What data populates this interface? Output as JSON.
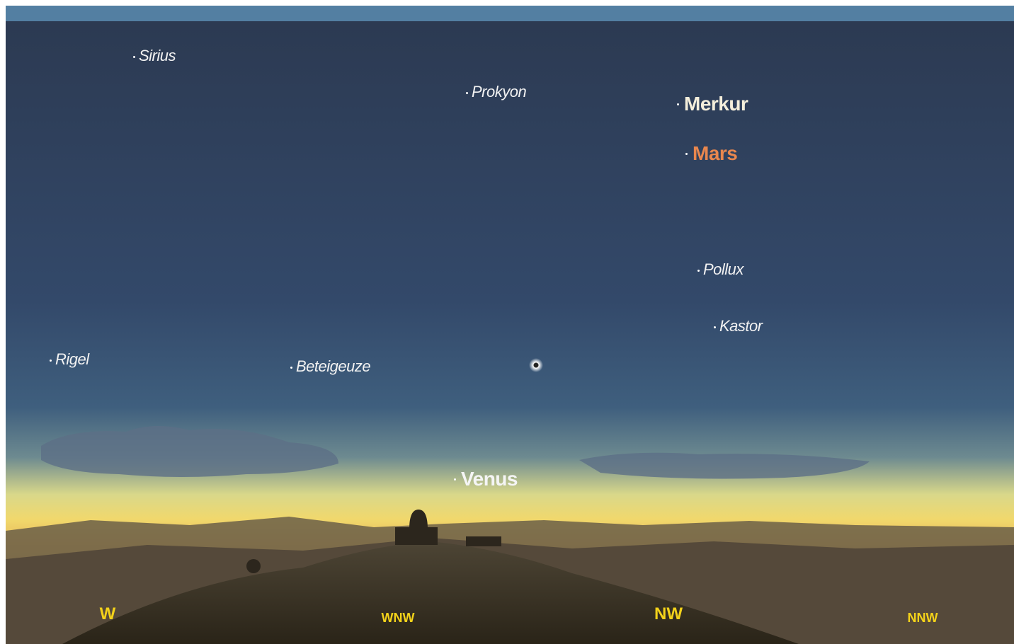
{
  "objects": [
    {
      "label": "Sirius"
    },
    {
      "label": "Prokyon"
    },
    {
      "label": "Merkur"
    },
    {
      "label": "Mars"
    },
    {
      "label": "Pollux"
    },
    {
      "label": "Kastor"
    },
    {
      "label": "Rigel"
    },
    {
      "label": "Beteigeuze"
    },
    {
      "label": "Venus"
    }
  ],
  "directions": [
    "W",
    "WNW",
    "NW",
    "NNW"
  ]
}
